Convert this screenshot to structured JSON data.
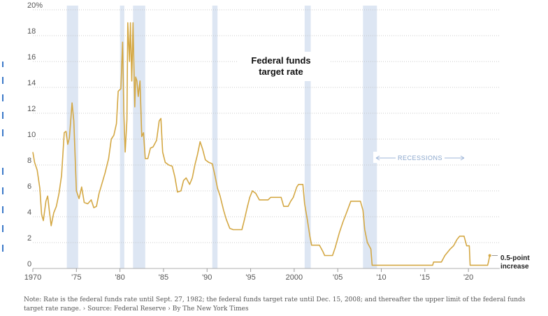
{
  "chart_data": {
    "type": "line",
    "title": "Federal funds\ntarget rate",
    "title_lines": [
      "Federal funds",
      "target rate"
    ],
    "x_ticks": [
      "1970",
      "'75",
      "'80",
      "'85",
      "'90",
      "'95",
      "2000",
      "'05",
      "'10",
      "'15",
      "'20"
    ],
    "y_ticks": [
      "20%",
      "18",
      "16",
      "14",
      "12",
      "10",
      "8",
      "6",
      "4",
      "2",
      "0"
    ],
    "xlim": [
      1970,
      2023.6
    ],
    "ylim": [
      0,
      20
    ],
    "grid": "horizontal dotted",
    "legend_label": "RECESSIONS",
    "recessions": [
      [
        1973.9,
        1975.2
      ],
      [
        1980.0,
        1980.5
      ],
      [
        1981.5,
        1982.9
      ],
      [
        1990.6,
        1991.2
      ],
      [
        2001.2,
        2001.9
      ],
      [
        2007.9,
        2009.5
      ]
    ],
    "annotation_lines": [
      "0.5-point",
      "increase"
    ],
    "series": [
      {
        "name": "",
        "color": "#d4a844",
        "points": [
          [
            1970.0,
            9.0
          ],
          [
            1970.2,
            8.2
          ],
          [
            1970.5,
            7.6
          ],
          [
            1970.8,
            6.2
          ],
          [
            1971.0,
            4.2
          ],
          [
            1971.2,
            3.7
          ],
          [
            1971.5,
            5.2
          ],
          [
            1971.7,
            5.6
          ],
          [
            1971.9,
            4.4
          ],
          [
            1972.1,
            3.3
          ],
          [
            1972.4,
            4.3
          ],
          [
            1972.7,
            4.8
          ],
          [
            1973.0,
            5.8
          ],
          [
            1973.3,
            7.2
          ],
          [
            1973.6,
            10.5
          ],
          [
            1973.8,
            10.6
          ],
          [
            1974.0,
            9.6
          ],
          [
            1974.2,
            10.1
          ],
          [
            1974.5,
            12.8
          ],
          [
            1974.7,
            11.4
          ],
          [
            1975.0,
            6.0
          ],
          [
            1975.3,
            5.4
          ],
          [
            1975.6,
            6.3
          ],
          [
            1975.9,
            5.1
          ],
          [
            1976.3,
            5.0
          ],
          [
            1976.7,
            5.3
          ],
          [
            1977.0,
            4.7
          ],
          [
            1977.3,
            4.8
          ],
          [
            1977.6,
            5.8
          ],
          [
            1977.9,
            6.5
          ],
          [
            1978.3,
            7.4
          ],
          [
            1978.7,
            8.5
          ],
          [
            1979.0,
            10.0
          ],
          [
            1979.3,
            10.3
          ],
          [
            1979.6,
            11.2
          ],
          [
            1979.8,
            13.7
          ],
          [
            1980.1,
            13.9
          ],
          [
            1980.3,
            17.5
          ],
          [
            1980.45,
            12.0
          ],
          [
            1980.6,
            9.0
          ],
          [
            1980.8,
            11.5
          ],
          [
            1980.9,
            19.0
          ],
          [
            1981.1,
            16.0
          ],
          [
            1981.2,
            19.0
          ],
          [
            1981.35,
            14.5
          ],
          [
            1981.5,
            19.0
          ],
          [
            1981.7,
            12.5
          ],
          [
            1981.8,
            14.8
          ],
          [
            1981.95,
            14.5
          ],
          [
            1982.1,
            13.3
          ],
          [
            1982.3,
            14.5
          ],
          [
            1982.5,
            10.2
          ],
          [
            1982.7,
            10.5
          ],
          [
            1982.9,
            8.5
          ],
          [
            1983.2,
            8.5
          ],
          [
            1983.5,
            9.3
          ],
          [
            1983.8,
            9.4
          ],
          [
            1984.2,
            9.9
          ],
          [
            1984.5,
            11.4
          ],
          [
            1984.7,
            11.6
          ],
          [
            1984.9,
            9.0
          ],
          [
            1985.2,
            8.2
          ],
          [
            1985.6,
            8.0
          ],
          [
            1986.0,
            7.9
          ],
          [
            1986.3,
            7.1
          ],
          [
            1986.6,
            5.9
          ],
          [
            1987.0,
            6.0
          ],
          [
            1987.3,
            6.8
          ],
          [
            1987.6,
            7.0
          ],
          [
            1988.0,
            6.5
          ],
          [
            1988.3,
            7.0
          ],
          [
            1988.6,
            8.0
          ],
          [
            1988.9,
            8.8
          ],
          [
            1989.2,
            9.8
          ],
          [
            1989.5,
            9.2
          ],
          [
            1989.8,
            8.4
          ],
          [
            1990.2,
            8.2
          ],
          [
            1990.6,
            8.1
          ],
          [
            1990.9,
            7.2
          ],
          [
            1991.2,
            6.2
          ],
          [
            1991.5,
            5.6
          ],
          [
            1991.9,
            4.5
          ],
          [
            1992.2,
            3.8
          ],
          [
            1992.6,
            3.1
          ],
          [
            1993.0,
            3.0
          ],
          [
            1994.0,
            3.0
          ],
          [
            1994.3,
            3.8
          ],
          [
            1994.6,
            4.7
          ],
          [
            1994.9,
            5.5
          ],
          [
            1995.2,
            6.0
          ],
          [
            1995.6,
            5.8
          ],
          [
            1996.0,
            5.3
          ],
          [
            1997.0,
            5.3
          ],
          [
            1997.3,
            5.5
          ],
          [
            1998.5,
            5.5
          ],
          [
            1998.8,
            4.8
          ],
          [
            1999.3,
            4.8
          ],
          [
            1999.6,
            5.2
          ],
          [
            1999.9,
            5.5
          ],
          [
            2000.3,
            6.3
          ],
          [
            2000.5,
            6.5
          ],
          [
            2001.0,
            6.5
          ],
          [
            2001.2,
            5.0
          ],
          [
            2001.5,
            3.8
          ],
          [
            2001.8,
            2.5
          ],
          [
            2002.0,
            1.8
          ],
          [
            2002.9,
            1.8
          ],
          [
            2003.3,
            1.3
          ],
          [
            2003.5,
            1.0
          ],
          [
            2004.4,
            1.0
          ],
          [
            2004.7,
            1.6
          ],
          [
            2005.2,
            2.8
          ],
          [
            2005.6,
            3.6
          ],
          [
            2006.0,
            4.3
          ],
          [
            2006.5,
            5.2
          ],
          [
            2007.6,
            5.2
          ],
          [
            2007.9,
            4.5
          ],
          [
            2008.1,
            3.0
          ],
          [
            2008.4,
            2.0
          ],
          [
            2008.8,
            1.5
          ],
          [
            2008.95,
            0.25
          ],
          [
            2015.9,
            0.25
          ],
          [
            2016.0,
            0.5
          ],
          [
            2016.9,
            0.5
          ],
          [
            2017.3,
            1.0
          ],
          [
            2017.9,
            1.5
          ],
          [
            2018.3,
            1.75
          ],
          [
            2018.7,
            2.25
          ],
          [
            2019.0,
            2.5
          ],
          [
            2019.5,
            2.5
          ],
          [
            2019.8,
            1.75
          ],
          [
            2020.1,
            1.75
          ],
          [
            2020.2,
            0.25
          ],
          [
            2022.2,
            0.25
          ],
          [
            2022.3,
            0.5
          ],
          [
            2022.45,
            1.0
          ]
        ]
      }
    ]
  },
  "note_text": "Note: Rate is the federal funds rate until Sept. 27, 1982; the federal funds target rate until Dec. 15, 2008; and thereafter the upper limit of the federal funds target rate range.",
  "source_text": "Source: Federal Reserve",
  "credit_text": "By The New York Times",
  "colors": {
    "line": "#d4a844",
    "recession": "#dde6f3",
    "grid": "#bbbbbb"
  }
}
